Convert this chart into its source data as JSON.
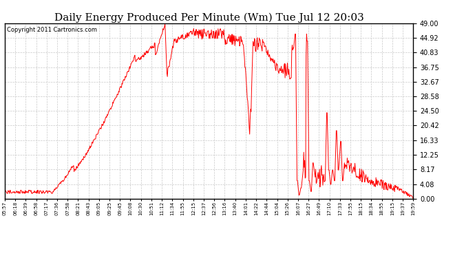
{
  "title": "Daily Energy Produced Per Minute (Wm) Tue Jul 12 20:03",
  "copyright": "Copyright 2011 Cartronics.com",
  "line_color": "#ff0000",
  "background_color": "#ffffff",
  "plot_bg_color": "#ffffff",
  "grid_color": "#c8c8c8",
  "ylim": [
    0,
    49.0
  ],
  "yticks": [
    0.0,
    4.08,
    8.17,
    12.25,
    16.33,
    20.42,
    24.5,
    28.58,
    32.67,
    36.75,
    40.83,
    44.92,
    49.0
  ],
  "xtick_labels": [
    "05:57",
    "06:18",
    "06:39",
    "06:58",
    "07:17",
    "07:36",
    "07:58",
    "08:21",
    "08:43",
    "09:05",
    "09:25",
    "09:45",
    "10:08",
    "10:30",
    "10:51",
    "11:12",
    "11:34",
    "11:55",
    "12:15",
    "12:37",
    "12:56",
    "13:16",
    "13:40",
    "14:01",
    "14:22",
    "14:44",
    "15:04",
    "15:26",
    "16:07",
    "16:27",
    "16:49",
    "17:10",
    "17:33",
    "17:55",
    "18:15",
    "18:34",
    "18:55",
    "19:15",
    "19:37",
    "19:59"
  ],
  "title_fontsize": 11,
  "copyright_fontsize": 6,
  "tick_fontsize": 7,
  "xtick_fontsize": 5
}
